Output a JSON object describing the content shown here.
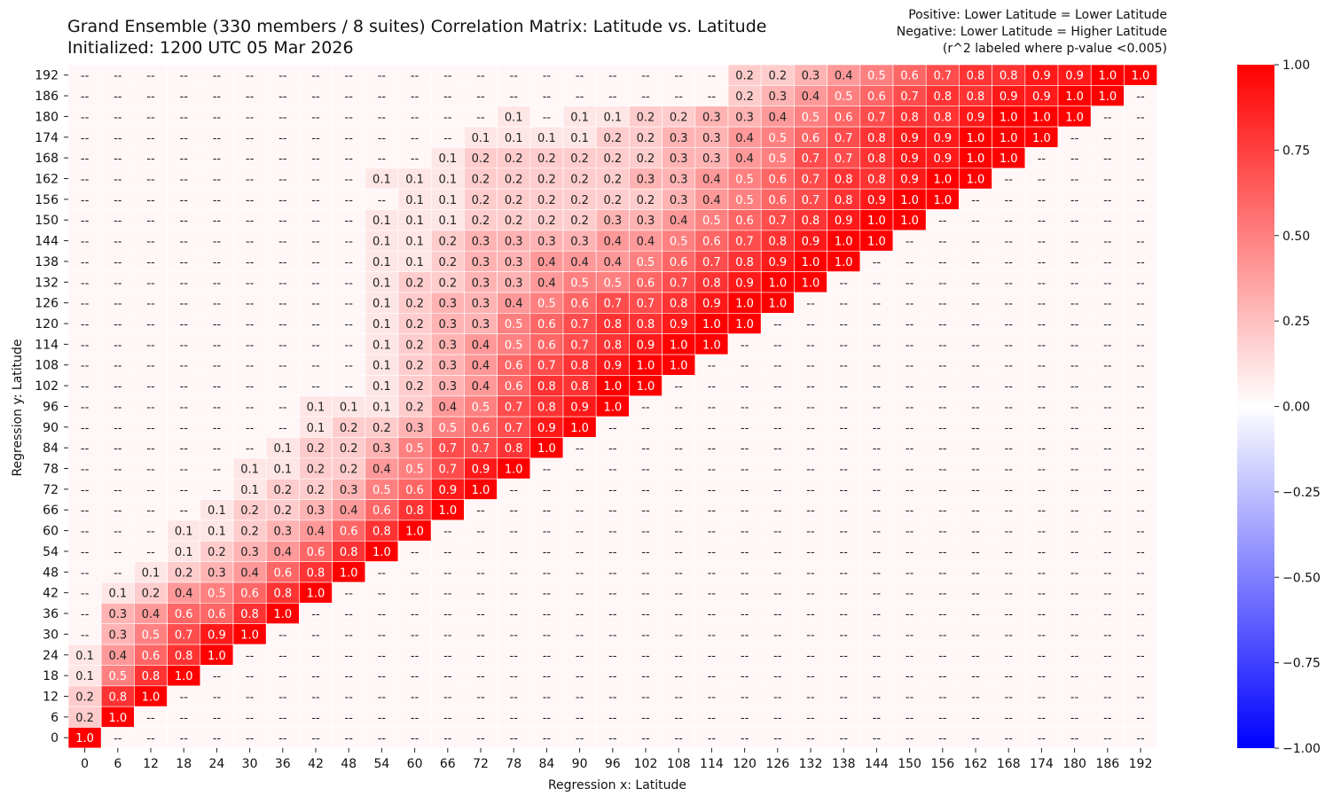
{
  "header": {
    "title_line1": "Grand Ensemble (330 members / 8 suites) Correlation Matrix: Latitude vs. Latitude",
    "title_line2": "Initialized: 1200 UTC 05 Mar 2026",
    "note_line1": "Positive: Lower Latitude = Lower Latitude",
    "note_line2": "Negative: Lower Latitude = Higher Latitude",
    "note_line3": "(r^2 labeled where p-value <0.005)"
  },
  "chart_data": {
    "type": "heatmap",
    "xlabel": "Regression x: Latitude",
    "ylabel": "Regression y: Latitude",
    "x": [
      0,
      6,
      12,
      18,
      24,
      30,
      36,
      42,
      48,
      54,
      60,
      66,
      72,
      78,
      84,
      90,
      96,
      102,
      108,
      114,
      120,
      126,
      132,
      138,
      144,
      150,
      156,
      162,
      168,
      174,
      180,
      186,
      192
    ],
    "y": [
      192,
      186,
      180,
      174,
      168,
      162,
      156,
      150,
      144,
      138,
      132,
      126,
      120,
      114,
      108,
      102,
      96,
      90,
      84,
      78,
      72,
      66,
      60,
      54,
      48,
      42,
      36,
      30,
      24,
      18,
      12,
      6,
      0
    ],
    "empty_label": "--",
    "labels": [
      "-- -- -- -- -- -- -- -- -- -- -- -- -- -- -- -- -- -- -- -- 0.2 0.2 0.3 0.4 0.5 0.6 0.7 0.8 0.8 0.9 0.9 1.0 1.0",
      "-- -- -- -- -- -- -- -- -- -- -- -- -- -- -- -- -- -- -- -- 0.2 0.3 0.4 0.5 0.6 0.7 0.8 0.8 0.9 0.9 1.0 1.0 --",
      "-- -- -- -- -- -- -- -- -- -- -- -- -- 0.1 -- 0.1 0.1 0.2 0.2 0.3 0.3 0.4 0.5 0.6 0.7 0.8 0.8 0.9 1.0 1.0 1.0 -- --",
      "-- -- -- -- -- -- -- -- -- -- -- -- 0.1 0.1 0.1 0.1 0.2 0.2 0.3 0.3 0.4 0.5 0.6 0.7 0.8 0.9 0.9 1.0 1.0 1.0 -- -- --",
      "-- -- -- -- -- -- -- -- -- -- -- 0.1 0.2 0.2 0.2 0.2 0.2 0.2 0.3 0.3 0.4 0.5 0.7 0.7 0.8 0.9 0.9 1.0 1.0 -- -- -- --",
      "-- -- -- -- -- -- -- -- -- 0.1 0.1 0.1 0.2 0.2 0.2 0.2 0.2 0.3 0.3 0.4 0.5 0.6 0.7 0.8 0.8 0.9 1.0 1.0 -- -- -- -- --",
      "-- -- -- -- -- -- -- -- -- -- 0.1 0.1 0.2 0.2 0.2 0.2 0.2 0.2 0.3 0.4 0.5 0.6 0.7 0.8 0.9 1.0 1.0 -- -- -- -- -- --",
      "-- -- -- -- -- -- -- -- -- 0.1 0.1 0.1 0.2 0.2 0.2 0.2 0.3 0.3 0.4 0.5 0.6 0.7 0.8 0.9 1.0 1.0 -- -- -- -- -- -- --",
      "-- -- -- -- -- -- -- -- -- 0.1 0.1 0.2 0.3 0.3 0.3 0.3 0.4 0.4 0.5 0.6 0.7 0.8 0.9 1.0 1.0 -- -- -- -- -- -- -- --",
      "-- -- -- -- -- -- -- -- -- 0.1 0.1 0.2 0.3 0.3 0.4 0.4 0.4 0.5 0.6 0.7 0.8 0.9 1.0 1.0 -- -- -- -- -- -- -- -- --",
      "-- -- -- -- -- -- -- -- -- 0.1 0.2 0.2 0.3 0.3 0.4 0.5 0.5 0.6 0.7 0.8 0.9 1.0 1.0 -- -- -- -- -- -- -- -- -- --",
      "-- -- -- -- -- -- -- -- -- 0.1 0.2 0.3 0.3 0.4 0.5 0.6 0.7 0.7 0.8 0.9 1.0 1.0 -- -- -- -- -- -- -- -- -- -- --",
      "-- -- -- -- -- -- -- -- -- 0.1 0.2 0.3 0.3 0.5 0.6 0.7 0.8 0.8 0.9 1.0 1.0 -- -- -- -- -- -- -- -- -- -- -- --",
      "-- -- -- -- -- -- -- -- -- 0.1 0.2 0.3 0.4 0.5 0.6 0.7 0.8 0.9 1.0 1.0 -- -- -- -- -- -- -- -- -- -- -- -- --",
      "-- -- -- -- -- -- -- -- -- 0.1 0.2 0.3 0.4 0.6 0.7 0.8 0.9 1.0 1.0 -- -- -- -- -- -- -- -- -- -- -- -- -- --",
      "-- -- -- -- -- -- -- -- -- 0.1 0.2 0.3 0.4 0.6 0.8 0.8 1.0 1.0 -- -- -- -- -- -- -- -- -- -- -- -- -- -- --",
      "-- -- -- -- -- -- -- 0.1 0.1 0.1 0.2 0.4 0.5 0.7 0.8 0.9 1.0 -- -- -- -- -- -- -- -- -- -- -- -- -- -- -- --",
      "-- -- -- -- -- -- -- 0.1 0.2 0.2 0.3 0.5 0.6 0.7 0.9 1.0 -- -- -- -- -- -- -- -- -- -- -- -- -- -- -- -- --",
      "-- -- -- -- -- -- 0.1 0.2 0.2 0.3 0.5 0.7 0.7 0.8 1.0 -- -- -- -- -- -- -- -- -- -- -- -- -- -- -- -- -- --",
      "-- -- -- -- -- 0.1 0.1 0.2 0.2 0.4 0.5 0.7 0.9 1.0 -- -- -- -- -- -- -- -- -- -- -- -- -- -- -- -- -- -- --",
      "-- -- -- -- -- 0.1 0.2 0.2 0.3 0.5 0.6 0.9 1.0 -- -- -- -- -- -- -- -- -- -- -- -- -- -- -- -- -- -- -- --",
      "-- -- -- -- 0.1 0.2 0.2 0.3 0.4 0.6 0.8 1.0 -- -- -- -- -- -- -- -- -- -- -- -- -- -- -- -- -- -- -- -- --",
      "-- -- -- 0.1 0.1 0.2 0.3 0.4 0.6 0.8 1.0 -- -- -- -- -- -- -- -- -- -- -- -- -- -- -- -- -- -- -- -- -- --",
      "-- -- -- 0.1 0.2 0.3 0.4 0.6 0.8 1.0 -- -- -- -- -- -- -- -- -- -- -- -- -- -- -- -- -- -- -- -- -- -- --",
      "-- -- 0.1 0.2 0.3 0.4 0.6 0.8 1.0 -- -- -- -- -- -- -- -- -- -- -- -- -- -- -- -- -- -- -- -- -- -- -- --",
      "-- 0.1 0.2 0.4 0.5 0.6 0.8 1.0 -- -- -- -- -- -- -- -- -- -- -- -- -- -- -- -- -- -- -- -- -- -- -- -- --",
      "-- 0.3 0.4 0.6 0.6 0.8 1.0 -- -- -- -- -- -- -- -- -- -- -- -- -- -- -- -- -- -- -- -- -- -- -- -- -- --",
      "-- 0.3 0.5 0.7 0.9 1.0 -- -- -- -- -- -- -- -- -- -- -- -- -- -- -- -- -- -- -- -- -- -- -- -- -- -- --",
      "0.1 0.4 0.6 0.8 1.0 -- -- -- -- -- -- -- -- -- -- -- -- -- -- -- -- -- -- -- -- -- -- -- -- -- -- -- --",
      "0.1 0.5 0.8 1.0 -- -- -- -- -- -- -- -- -- -- -- -- -- -- -- -- -- -- -- -- -- -- -- -- -- -- -- -- --",
      "0.2 0.8 1.0 -- -- -- -- -- -- -- -- -- -- -- -- -- -- -- -- -- -- -- -- -- -- -- -- -- -- -- -- -- --",
      "0.2 1.0 -- -- -- -- -- -- -- -- -- -- -- -- -- -- -- -- -- -- -- -- -- -- -- -- -- -- -- -- -- -- --",
      "1.0 -- -- -- -- -- -- -- -- -- -- -- -- -- -- -- -- -- -- -- -- -- -- -- -- -- -- -- -- -- -- -- --"
    ],
    "colorbar": {
      "vmin": -1.0,
      "vmax": 1.0,
      "ticks": [
        "1.00",
        "0.75",
        "0.50",
        "0.25",
        "0.00",
        "−0.25",
        "−0.50",
        "−0.75",
        "−1.00"
      ],
      "tick_values": [
        1.0,
        0.75,
        0.5,
        0.25,
        0.0,
        -0.25,
        -0.5,
        -0.75,
        -1.0
      ],
      "colors": [
        "#0000ff",
        "#ffffff",
        "#ff0000"
      ]
    }
  }
}
